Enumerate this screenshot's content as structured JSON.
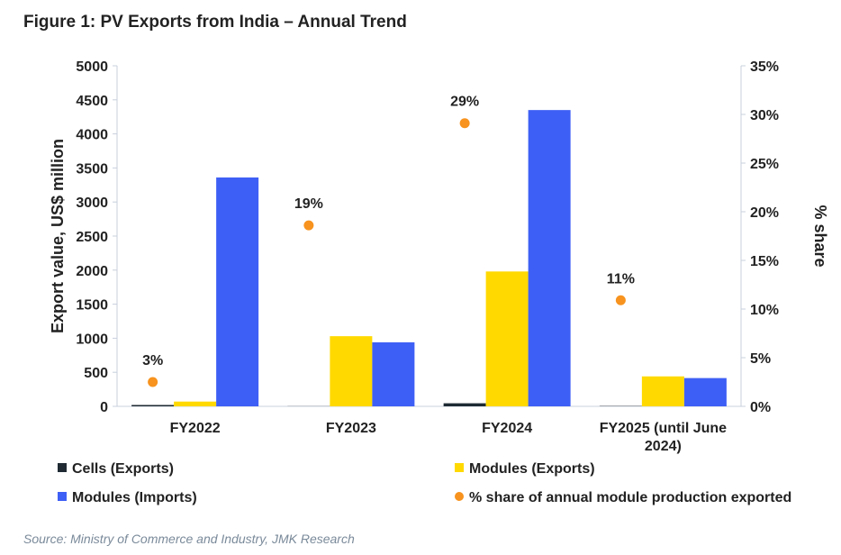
{
  "title": "Figure 1: PV Exports from India – Annual Trend",
  "source": "Source: Ministry of Commerce and Industry, JMK Research",
  "chart_data": {
    "type": "bar",
    "categories": [
      "FY2022",
      "FY2023",
      "FY2024",
      "FY2025 (until June 2024)"
    ],
    "ylabel": "Export value, US$ million",
    "y2label": "% share",
    "ylim": [
      0,
      5000
    ],
    "y2lim": [
      0,
      35
    ],
    "yticks": [
      "0",
      "500",
      "1000",
      "1500",
      "2000",
      "2500",
      "3000",
      "3500",
      "4000",
      "4500",
      "5000"
    ],
    "y2ticks": [
      "0%",
      "5%",
      "10%",
      "15%",
      "20%",
      "25%",
      "30%",
      "35%"
    ],
    "grid": false,
    "legend_position": "bottom",
    "series": [
      {
        "name": "Cells (Exports)",
        "type": "bar",
        "color": "#1f2a33",
        "values": [
          20,
          2,
          45,
          5
        ]
      },
      {
        "name": "Modules (Exports)",
        "type": "bar",
        "color": "#ffd900",
        "values": [
          70,
          1030,
          1980,
          440
        ]
      },
      {
        "name": "Modules (Imports)",
        "type": "bar",
        "color": "#3e5ff5",
        "values": [
          3360,
          940,
          4350,
          415
        ]
      },
      {
        "name": "% share of annual module production exported",
        "type": "scatter",
        "axis": "right",
        "color": "#f7931e",
        "values": [
          2.5,
          18.6,
          29.1,
          10.9
        ],
        "labels": [
          "3%",
          "19%",
          "29%",
          "11%"
        ]
      }
    ]
  }
}
